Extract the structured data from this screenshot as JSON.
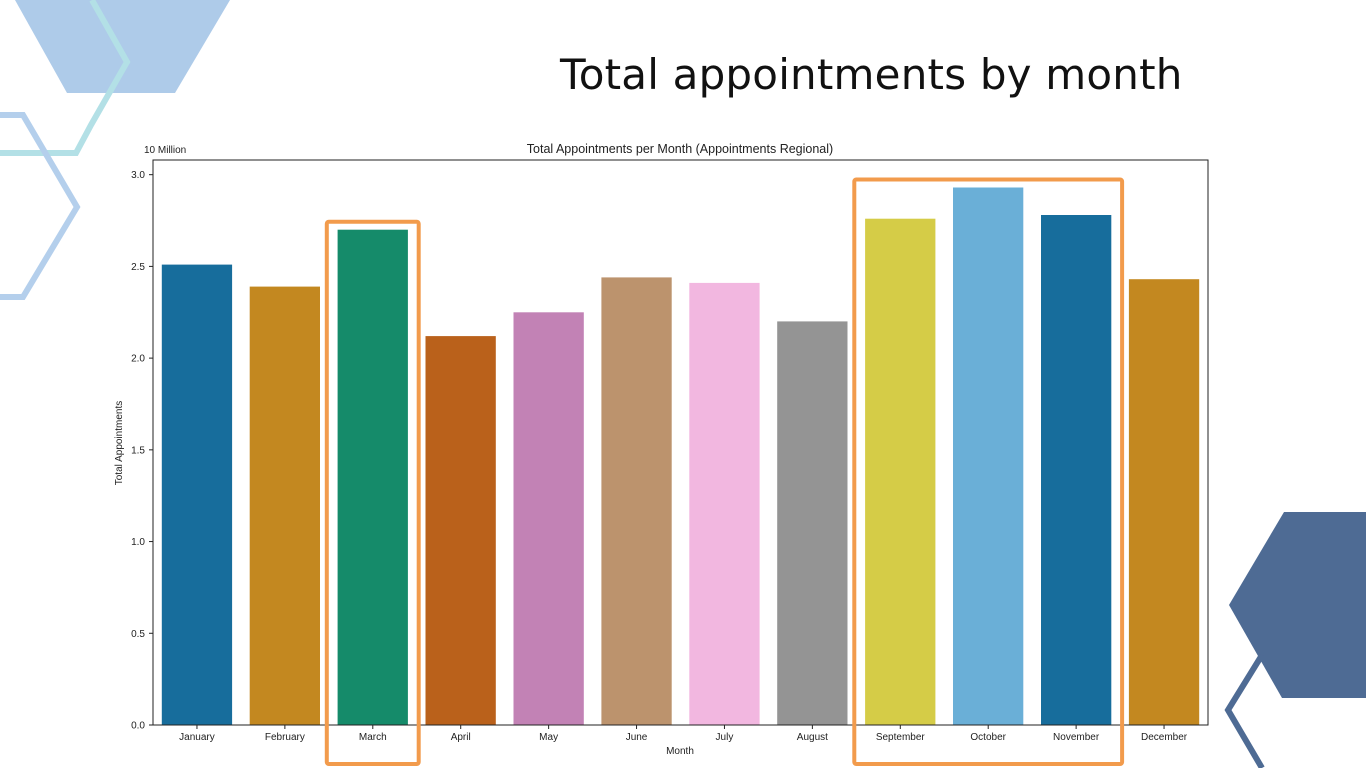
{
  "slide": {
    "title": "Total appointments by month"
  },
  "chart_data": {
    "type": "bar",
    "title": "Total Appointments per Month (Appointments Regional)",
    "xlabel": "Month",
    "ylabel": "Total Appointments",
    "scale_label": "10 Million",
    "ylim": [
      0,
      3.08
    ],
    "yticks": [
      0.0,
      0.5,
      1.0,
      1.5,
      2.0,
      2.5,
      3.0
    ],
    "ytick_labels": [
      "0.0",
      "0.5",
      "1.0",
      "1.5",
      "2.0",
      "2.5",
      "3.0"
    ],
    "grid": false,
    "categories": [
      "January",
      "February",
      "March",
      "April",
      "May",
      "June",
      "July",
      "August",
      "September",
      "October",
      "November",
      "December"
    ],
    "values": [
      2.51,
      2.39,
      2.7,
      2.12,
      2.25,
      2.44,
      2.41,
      2.2,
      2.76,
      2.93,
      2.78,
      2.43
    ],
    "colors": [
      "#176d9c",
      "#c38820",
      "#158b6a",
      "#ba611b",
      "#c282b5",
      "#bc936d",
      "#f2b7e0",
      "#949494",
      "#d5cc47",
      "#6aafd7",
      "#176d9c",
      "#c38820"
    ],
    "highlight_color": "#f29b4c",
    "highlights": [
      {
        "categories": [
          "March"
        ]
      },
      {
        "categories": [
          "September",
          "October",
          "November"
        ]
      }
    ]
  },
  "decoration_colors": {
    "light_blue": "#aecbe9",
    "teal_outline": "#b3e0e6",
    "blue_outline": "#b4cfec",
    "dark_blue": "#4e6b94"
  }
}
